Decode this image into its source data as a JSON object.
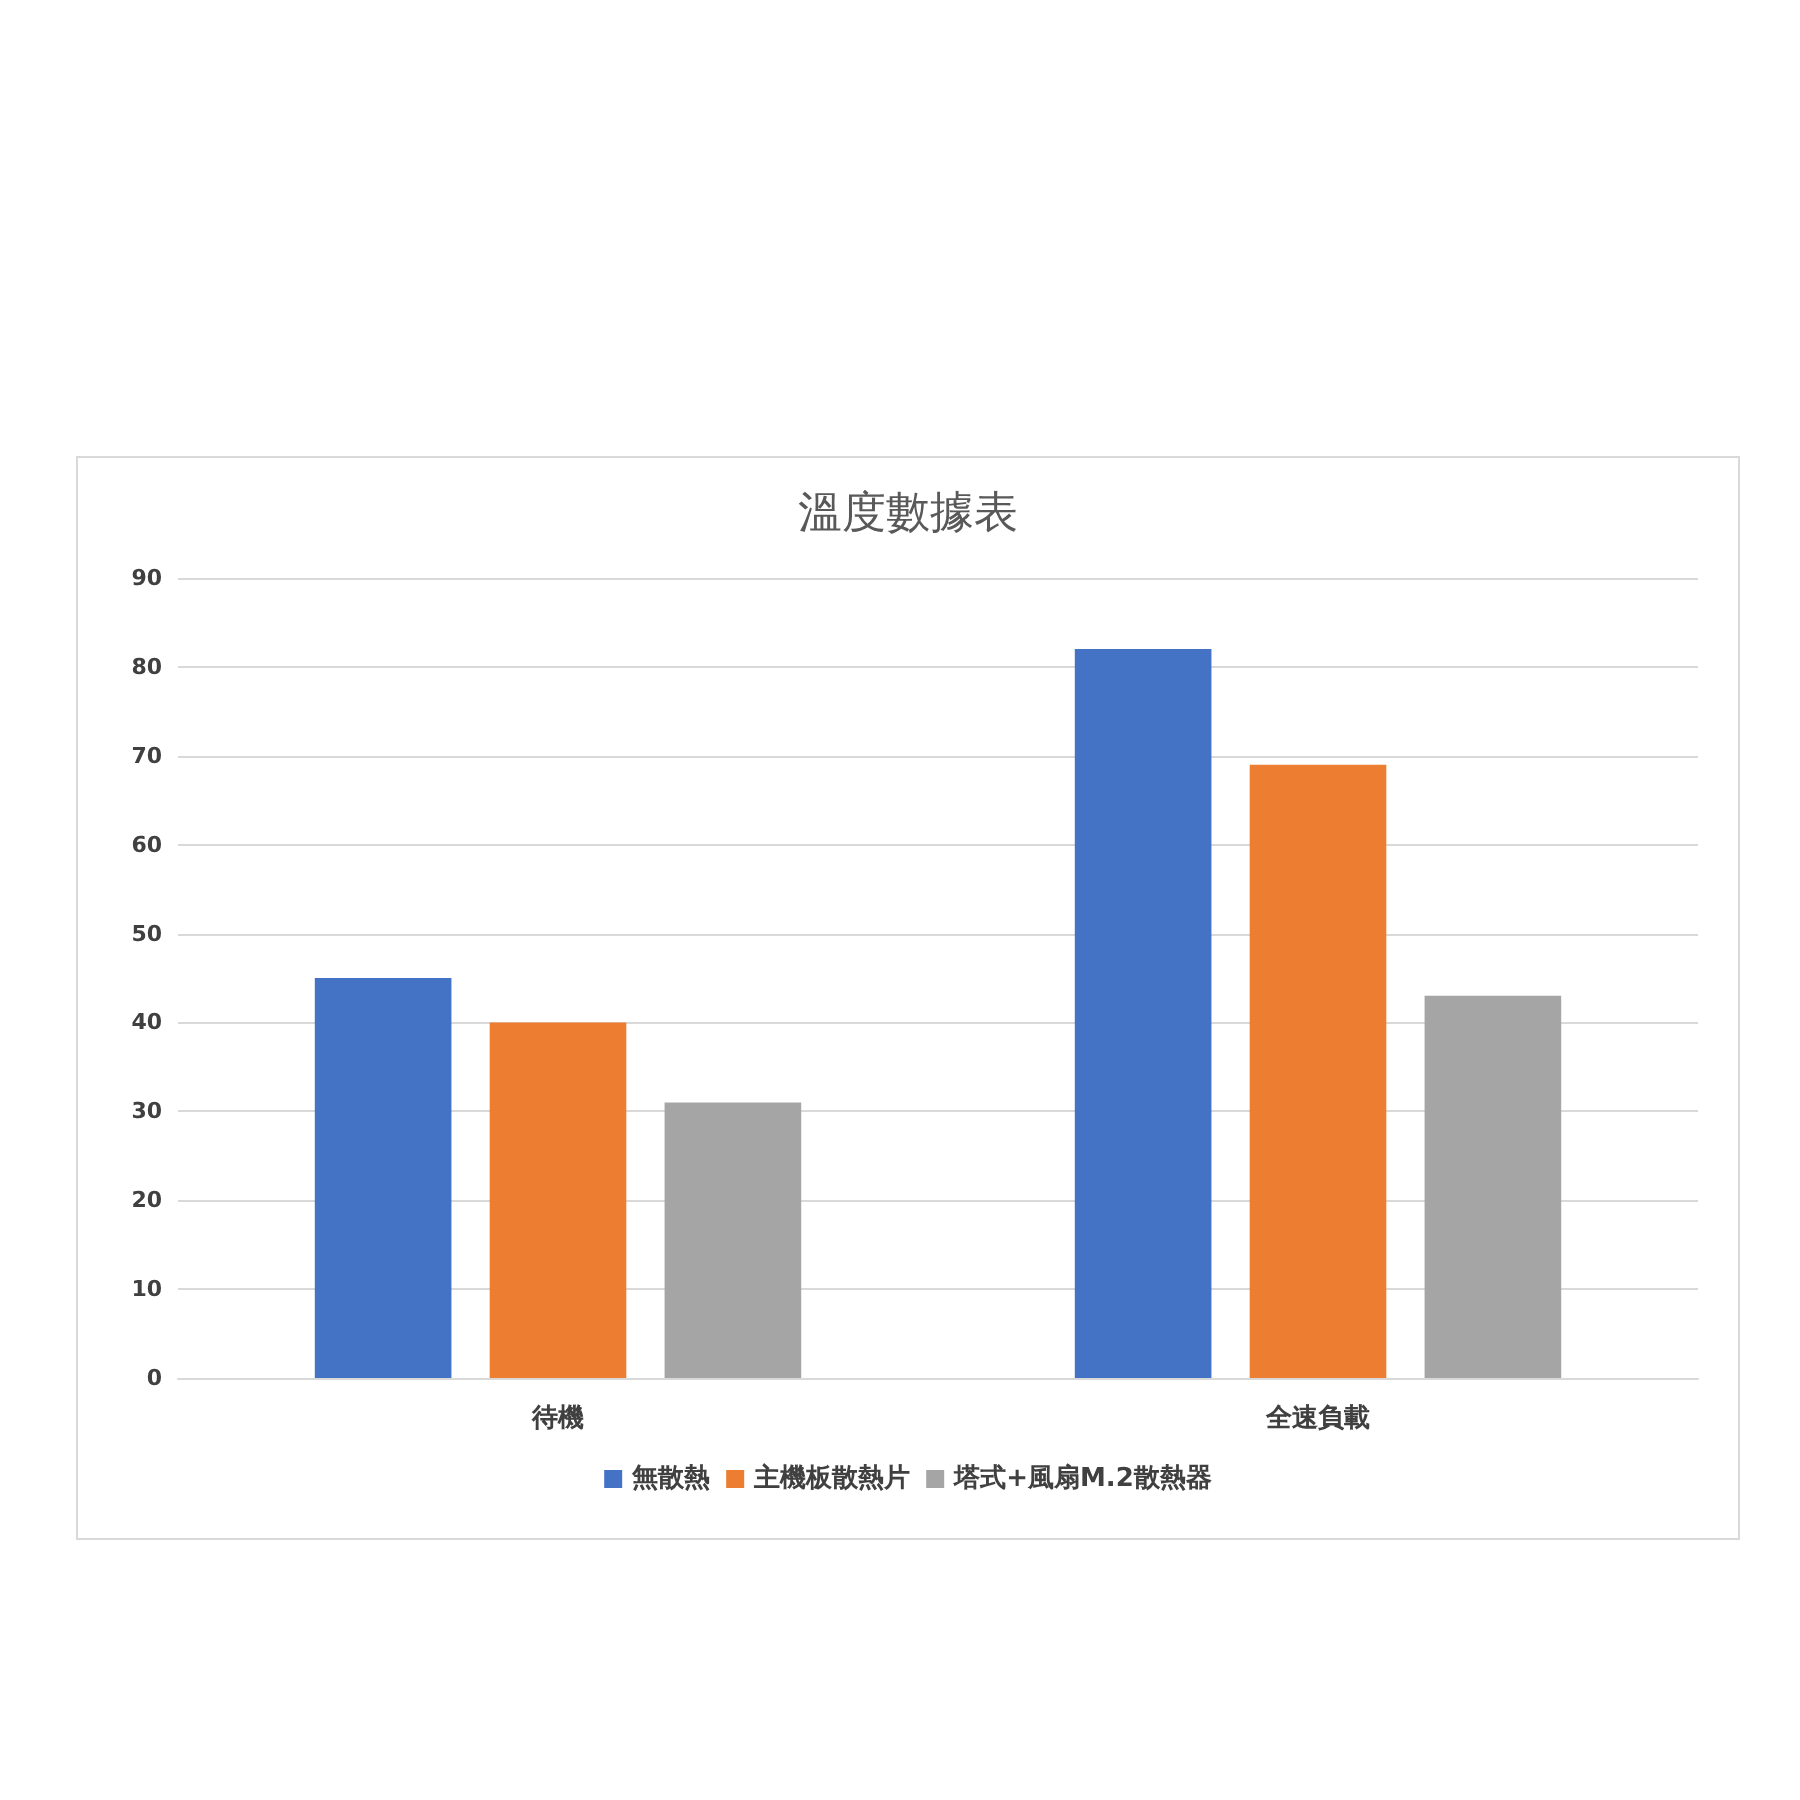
{
  "chart_data": {
    "type": "bar",
    "title": "溫度數據表",
    "categories": [
      "待機",
      "全速負載"
    ],
    "series": [
      {
        "name": "無散熱",
        "color": "#4472c4",
        "values": [
          45,
          82
        ]
      },
      {
        "name": "主機板散熱片",
        "color": "#ed7d31",
        "values": [
          40,
          69
        ]
      },
      {
        "name": "塔式+風扇M.2散熱器",
        "color": "#a5a5a5",
        "values": [
          31,
          43
        ]
      }
    ],
    "ylim": [
      0,
      90
    ],
    "yticks": [
      0,
      10,
      20,
      30,
      40,
      50,
      60,
      70,
      80,
      90
    ],
    "grid": "y",
    "legend": "bottom"
  }
}
